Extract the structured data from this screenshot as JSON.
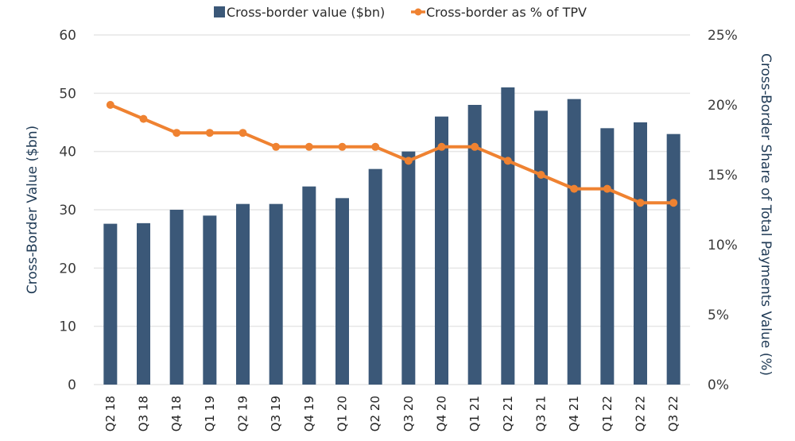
{
  "chart_data": {
    "type": "bar",
    "title": "",
    "categories": [
      "Q2 18",
      "Q3 18",
      "Q4 18",
      "Q1 19",
      "Q2 19",
      "Q3 19",
      "Q4 19",
      "Q1 20",
      "Q2 20",
      "Q3 20",
      "Q4 20",
      "Q1 21",
      "Q2 21",
      "Q3 21",
      "Q4 21",
      "Q1 22",
      "Q2 22",
      "Q3 22"
    ],
    "series": [
      {
        "name": "Cross-border value ($bn)",
        "type": "bar",
        "axis": "left",
        "color": "#3b5878",
        "values": [
          27.6,
          27.7,
          30,
          29,
          31,
          31,
          34,
          32,
          37,
          40,
          46,
          48,
          51,
          47,
          49,
          44,
          45,
          43
        ]
      },
      {
        "name": "Cross-border as % of TPV",
        "type": "line",
        "axis": "right",
        "color": "#ef8231",
        "values": [
          20,
          19,
          18,
          18,
          18,
          17,
          17,
          17,
          17,
          16,
          17,
          17,
          16,
          15,
          14,
          14,
          13,
          13
        ]
      }
    ],
    "xlabel": "",
    "ylabel": "Cross-Border Value ($bn)",
    "y2label": "Cross-Border Share of Total Payments Value (%)",
    "ylim": [
      0,
      60
    ],
    "y2lim": [
      0,
      25
    ],
    "yticks": [
      "0",
      "10",
      "20",
      "30",
      "40",
      "50",
      "60"
    ],
    "ytick_values": [
      0,
      10,
      20,
      30,
      40,
      50,
      60
    ],
    "y2ticks": [
      "0%",
      "5%",
      "10%",
      "15%",
      "20%",
      "25%"
    ],
    "y2tick_values": [
      0,
      5,
      10,
      15,
      20,
      25
    ],
    "grid": true,
    "legend_position": "top-center"
  }
}
